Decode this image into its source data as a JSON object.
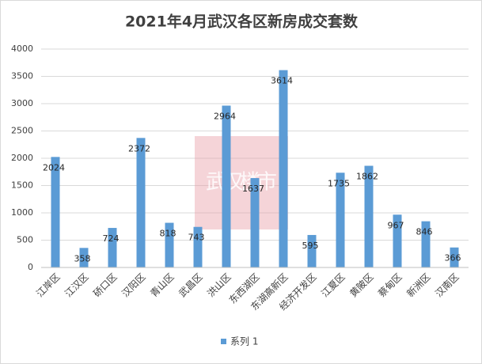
{
  "chart_data": {
    "type": "bar",
    "title": "2021年4月武汉各区新房成交套数",
    "watermark": "武汉楼市",
    "categories": [
      "江岸区",
      "江汉区",
      "硚口区",
      "汉阳区",
      "青山区",
      "武昌区",
      "洪山区",
      "东西湖区",
      "东湖高新区",
      "经济开发区",
      "江夏区",
      "黄陂区",
      "蔡甸区",
      "新洲区",
      "汉南区"
    ],
    "series": [
      {
        "name": "系列 1",
        "color": "#5b9bd5",
        "values": [
          2024,
          358,
          724,
          2372,
          818,
          743,
          2964,
          1637,
          3614,
          595,
          1735,
          1862,
          967,
          846,
          366
        ]
      }
    ],
    "ylim": [
      0,
      4000
    ],
    "yticks": [
      0,
      500,
      1000,
      1500,
      2000,
      2500,
      3000,
      3500,
      4000
    ],
    "grid": true,
    "legend": "bottom"
  }
}
